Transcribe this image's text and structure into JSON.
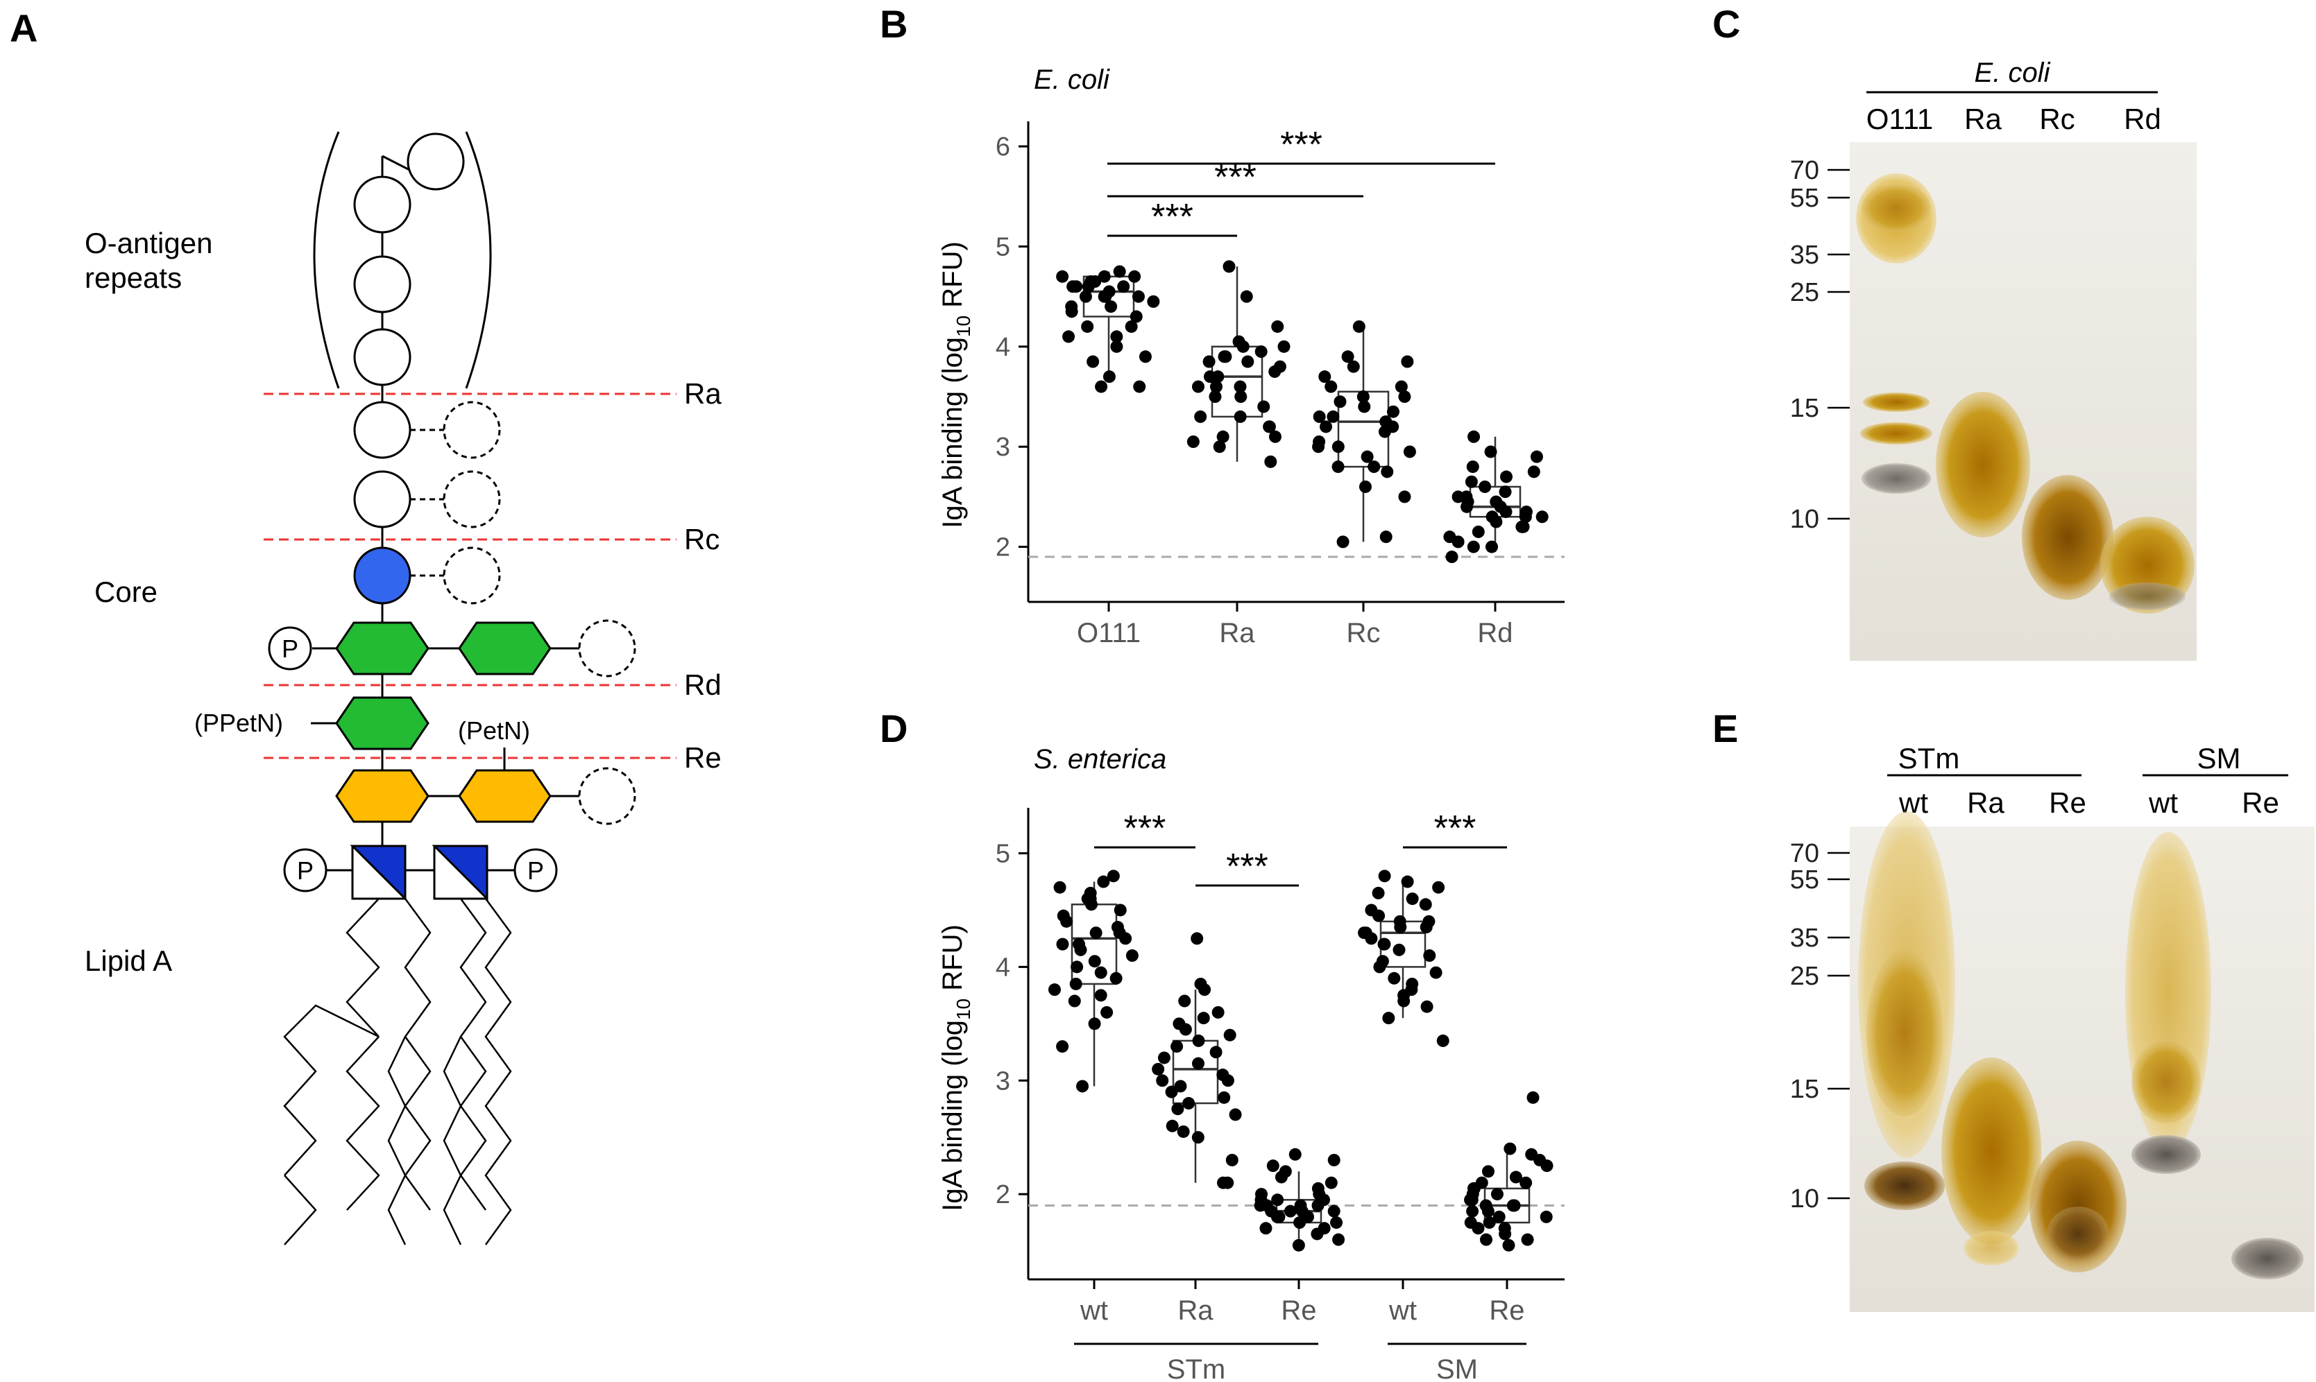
{
  "panels": {
    "A": "A",
    "B": "B",
    "C": "C",
    "D": "D",
    "E": "E"
  },
  "panelA": {
    "labels": {
      "oantigen": "O-antigen",
      "repeats": "repeats",
      "core": "Core",
      "lipidA": "Lipid A",
      "cut_ra": "Ra",
      "cut_rc": "Rc",
      "cut_rd": "Rd",
      "cut_re": "Re",
      "ppetn": "(PPetN)",
      "petn": "(PetN)",
      "phosphate": "P"
    },
    "colors": {
      "blue_sugar": "#3366ee",
      "green_sugar": "#22bb33",
      "yellow_sugar": "#ffbb00",
      "lipid_blue": "#1133cc",
      "cut_line": "#ee3333"
    }
  },
  "chart_data": [
    {
      "id": "B",
      "type": "scatter",
      "title": "E. coli",
      "ylabel_main": "IgA binding (log",
      "ylabel_sub": "10",
      "ylabel_tail": " RFU)",
      "ylim": [
        1.45,
        6.25
      ],
      "yticks": [
        "2",
        "3",
        "4",
        "5",
        "6"
      ],
      "categories": [
        "O111",
        "Ra",
        "Rc",
        "Rd"
      ],
      "boxes": [
        {
          "q1": 4.3,
          "median": 4.55,
          "q3": 4.7,
          "min": 3.7,
          "max": 4.75
        },
        {
          "q1": 3.3,
          "median": 3.7,
          "q3": 4.0,
          "min": 2.85,
          "max": 4.8
        },
        {
          "q1": 2.8,
          "median": 3.25,
          "q3": 3.55,
          "min": 2.05,
          "max": 4.2
        },
        {
          "q1": 2.3,
          "median": 2.4,
          "q3": 2.6,
          "min": 1.95,
          "max": 3.1
        }
      ],
      "points": [
        [
          4.2,
          4.1,
          3.6,
          3.6,
          4.6,
          4.5,
          4.35,
          4.45,
          4.6,
          4.7,
          4.7,
          4.5,
          4.6,
          4.55,
          4.4,
          4.65,
          4.75,
          4.7,
          4.5,
          4.6,
          4.3,
          3.9,
          3.85,
          3.7,
          4.0,
          4.2,
          4.1,
          4.4,
          4.5,
          4.65
        ],
        [
          4.0,
          3.9,
          3.7,
          3.5,
          3.3,
          3.05,
          3.1,
          3.85,
          4.8,
          4.0,
          3.7,
          3.6,
          3.8,
          3.75,
          3.5,
          3.3,
          3.2,
          3.0,
          2.85,
          3.6,
          3.4,
          3.9,
          3.95,
          4.2,
          4.05,
          3.85,
          3.1,
          3.2,
          4.5,
          3.6
        ],
        [
          4.2,
          3.9,
          3.6,
          3.3,
          3.2,
          3.0,
          2.9,
          2.8,
          3.4,
          3.35,
          3.15,
          2.95,
          3.5,
          3.25,
          3.6,
          2.8,
          2.5,
          2.05,
          2.1,
          3.05,
          3.2,
          3.8,
          3.85,
          3.7,
          3.45,
          3.0,
          2.75,
          2.6,
          3.5,
          3.3
        ],
        [
          3.1,
          2.9,
          2.7,
          2.5,
          2.4,
          2.3,
          2.2,
          2.1,
          2.05,
          2.0,
          2.35,
          2.45,
          2.6,
          2.55,
          2.25,
          2.15,
          2.3,
          2.4,
          2.5,
          2.2,
          2.0,
          1.9,
          2.8,
          2.95,
          2.65,
          2.75,
          2.35,
          2.45,
          2.2,
          2.3
        ]
      ],
      "baseline": 1.9,
      "significance": [
        {
          "from": "O111",
          "to": "Ra",
          "label": "***"
        },
        {
          "from": "O111",
          "to": "Rc",
          "label": "***"
        },
        {
          "from": "O111",
          "to": "Rd",
          "label": "***"
        }
      ]
    },
    {
      "id": "D",
      "type": "scatter",
      "title": "S. enterica",
      "ylabel_main": "IgA binding (log",
      "ylabel_sub": "10",
      "ylabel_tail": " RFU)",
      "ylim": [
        1.25,
        5.4
      ],
      "yticks": [
        "2",
        "3",
        "4",
        "5"
      ],
      "categories": [
        "wt",
        "Ra",
        "Re",
        "wt",
        "Re"
      ],
      "groups": [
        {
          "label": "STm",
          "members": [
            0,
            1,
            2
          ]
        },
        {
          "label": "SM",
          "members": [
            3,
            4
          ]
        }
      ],
      "boxes": [
        {
          "q1": 3.85,
          "median": 4.25,
          "q3": 4.55,
          "min": 2.95,
          "max": 4.75
        },
        {
          "q1": 2.8,
          "median": 3.1,
          "q3": 3.35,
          "min": 2.1,
          "max": 3.8
        },
        {
          "q1": 1.75,
          "median": 1.85,
          "q3": 1.95,
          "min": 1.5,
          "max": 2.2
        },
        {
          "q1": 4.0,
          "median": 4.3,
          "q3": 4.4,
          "min": 3.55,
          "max": 4.75
        },
        {
          "q1": 1.75,
          "median": 1.9,
          "q3": 2.05,
          "min": 1.5,
          "max": 2.4
        }
      ],
      "points": [
        [
          4.8,
          4.7,
          4.6,
          4.5,
          4.4,
          4.3,
          4.2,
          4.1,
          4.0,
          3.9,
          3.8,
          3.7,
          3.6,
          3.5,
          3.3,
          2.95,
          4.75,
          4.65,
          4.55,
          4.45,
          4.35,
          4.25,
          4.15,
          4.05,
          3.95,
          3.85,
          3.75,
          4.3,
          4.6,
          4.2
        ],
        [
          3.85,
          3.7,
          3.5,
          3.35,
          3.2,
          3.1,
          3.0,
          2.9,
          2.8,
          2.7,
          2.6,
          2.5,
          2.3,
          2.1,
          3.3,
          3.15,
          3.05,
          2.95,
          2.85,
          2.75,
          3.6,
          3.45,
          3.25,
          3.4,
          4.25,
          3.8,
          2.55,
          2.1,
          3.55,
          3.0
        ],
        [
          2.35,
          2.2,
          2.1,
          2.0,
          1.95,
          1.9,
          1.85,
          1.8,
          1.75,
          1.7,
          1.65,
          1.6,
          1.55,
          1.9,
          1.85,
          1.8,
          2.3,
          2.15,
          2.05,
          1.95,
          1.9,
          1.85,
          1.75,
          1.7,
          1.8,
          1.95,
          2.0,
          1.9,
          1.85,
          2.25
        ],
        [
          4.8,
          4.7,
          4.6,
          4.5,
          4.45,
          4.4,
          4.35,
          4.3,
          4.25,
          4.2,
          4.1,
          4.0,
          3.9,
          3.8,
          3.7,
          3.55,
          3.35,
          4.75,
          4.65,
          4.55,
          4.4,
          4.3,
          4.2,
          4.15,
          4.05,
          3.95,
          3.85,
          3.75,
          3.65,
          4.35
        ],
        [
          2.85,
          2.4,
          2.3,
          2.2,
          2.1,
          2.05,
          2.0,
          1.95,
          1.9,
          1.85,
          1.8,
          1.75,
          1.7,
          1.65,
          1.6,
          1.55,
          2.25,
          2.15,
          2.05,
          1.95,
          1.9,
          1.85,
          1.8,
          1.7,
          1.6,
          2.0,
          2.1,
          1.9,
          2.35,
          1.75
        ]
      ],
      "baseline": 1.9,
      "significance": [
        {
          "from": "wt",
          "to": "Ra",
          "label": "***"
        },
        {
          "from": "Ra",
          "to": "Re",
          "label": "***"
        },
        {
          "from": "wt (SM)",
          "to": "Re (SM)",
          "label": "***"
        }
      ]
    }
  ],
  "panelC": {
    "group_label": "E. coli",
    "lanes": [
      "O111",
      "Ra",
      "Rc",
      "Rd"
    ],
    "markers": [
      "70",
      "55",
      "35",
      "25",
      "15",
      "10"
    ]
  },
  "panelE": {
    "groups": [
      "STm",
      "SM"
    ],
    "lanes": [
      "wt",
      "Ra",
      "Re",
      "wt",
      "Re"
    ],
    "markers": [
      "70",
      "55",
      "35",
      "25",
      "15",
      "10"
    ]
  }
}
